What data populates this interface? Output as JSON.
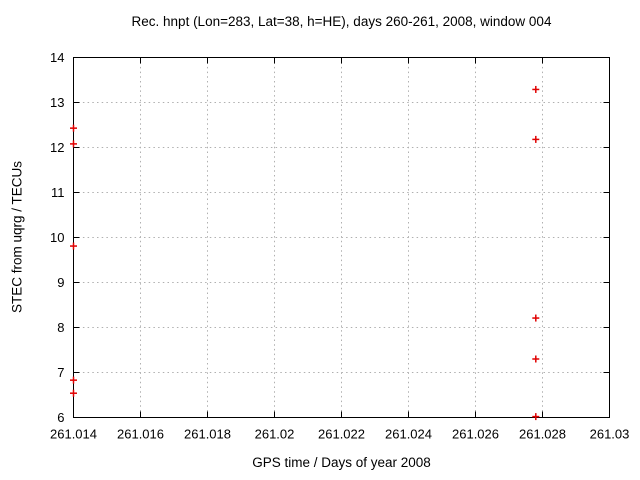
{
  "chart_data": {
    "type": "scatter",
    "title": "Rec. hnpt (Lon=283, Lat=38, h=HE), days 260-261, 2008, window 004",
    "xlabel": "GPS time / Days of year 2008",
    "ylabel": "STEC from uqrg / TECUs",
    "xlim": [
      261.014,
      261.03
    ],
    "ylim": [
      6,
      14
    ],
    "xticks": [
      261.014,
      261.016,
      261.018,
      261.02,
      261.022,
      261.024,
      261.026,
      261.028,
      261.03
    ],
    "xtick_labels": [
      "261.014",
      "261.016",
      "261.018",
      "261.02",
      "261.022",
      "261.024",
      "261.026",
      "261.028",
      "261.03"
    ],
    "yticks": [
      6,
      7,
      8,
      9,
      10,
      11,
      12,
      13,
      14
    ],
    "ytick_labels": [
      "6",
      "7",
      "8",
      "9",
      "10",
      "11",
      "12",
      "13",
      "14"
    ],
    "grid": true,
    "legend_position": "none",
    "marker": "plus",
    "colors": {
      "marker": "#e00000",
      "grid": "#b0b0b0",
      "axis": "#000000",
      "text": "#000000",
      "background": "#ffffff"
    },
    "series": [
      {
        "name": "STEC from uqrg",
        "points": [
          {
            "x": 261.014,
            "y": 12.43
          },
          {
            "x": 261.014,
            "y": 12.08
          },
          {
            "x": 261.014,
            "y": 9.81
          },
          {
            "x": 261.014,
            "y": 6.83
          },
          {
            "x": 261.014,
            "y": 6.54
          },
          {
            "x": 261.0278,
            "y": 13.29
          },
          {
            "x": 261.0278,
            "y": 12.18
          },
          {
            "x": 261.0278,
            "y": 8.21
          },
          {
            "x": 261.0278,
            "y": 7.3
          },
          {
            "x": 261.0278,
            "y": 6.02
          }
        ]
      }
    ]
  }
}
